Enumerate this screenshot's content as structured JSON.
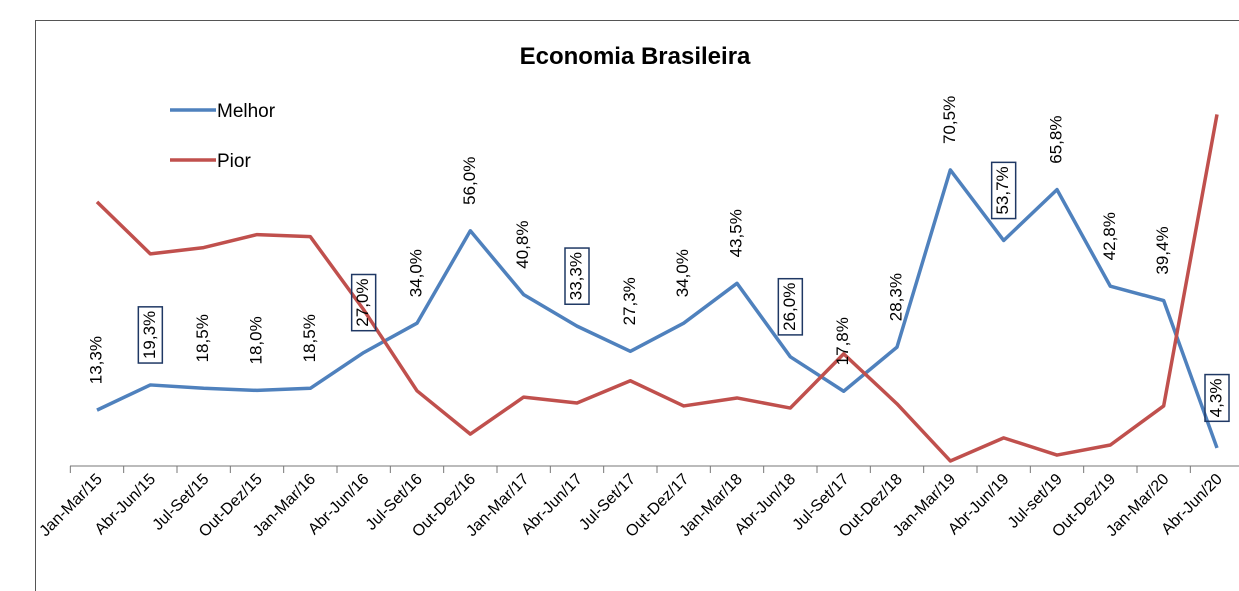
{
  "chart_data": {
    "type": "line",
    "title": "Economia Brasileira",
    "categories": [
      "Jan-Mar/15",
      "Abr-Jun/15",
      "Jul-Set/15",
      "Out-Dez/15",
      "Jan-Mar/16",
      "Abr-Jun/16",
      "Jul-Set/16",
      "Out-Dez/16",
      "Jan-Mar/17",
      "Abr-Jun/17",
      "Jul-Set/17",
      "Out-Dez/17",
      "Jan-Mar/18",
      "Abr-Jun/18",
      "Jul-Set/17",
      "Out-Dez/18",
      "Jan-Mar/19",
      "Abr-Jun/19",
      "Jul-set/19",
      "Out-Dez/19",
      "Jan-Mar/20",
      "Abr-Jun/20"
    ],
    "series": [
      {
        "name": "Melhor",
        "color": "#4f81bd",
        "values": [
          13.3,
          19.3,
          18.5,
          18.0,
          18.5,
          27.0,
          34.0,
          56.0,
          40.8,
          33.3,
          27.3,
          34.0,
          43.5,
          26.0,
          17.8,
          28.3,
          70.5,
          53.7,
          65.8,
          42.8,
          39.4,
          4.3
        ],
        "value_labels": [
          "13,3%",
          "19,3%",
          "18,5%",
          "18,0%",
          "18,5%",
          "27,0%",
          "34,0%",
          "56,0%",
          "40,8%",
          "33,3%",
          "27,3%",
          "34,0%",
          "43,5%",
          "26,0%",
          "17,8%",
          "28,3%",
          "70,5%",
          "53,7%",
          "65,8%",
          "42,8%",
          "39,4%",
          "4,3%"
        ],
        "boxed_labels": [
          1,
          5,
          9,
          13,
          17,
          21
        ]
      },
      {
        "name": "Pior",
        "color": "#c0504d",
        "values": [
          62.9,
          50.5,
          52.0,
          55.1,
          54.6,
          37.2,
          17.9,
          7.6,
          16.4,
          15.0,
          20.3,
          14.3,
          16.2,
          13.8,
          26.7,
          14.8,
          1.2,
          6.7,
          2.6,
          5.0,
          14.3,
          83.7
        ]
      }
    ],
    "ylim": [
      0,
      85
    ],
    "legend": "upper-left"
  }
}
